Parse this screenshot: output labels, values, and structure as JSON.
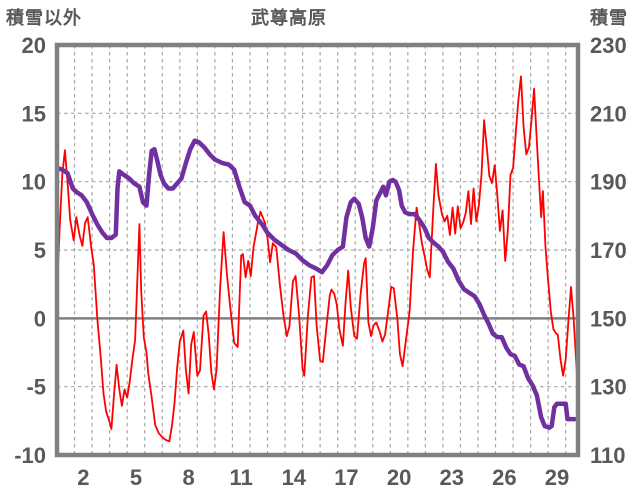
{
  "header": {
    "left_axis_label": "積雪以外",
    "title": "武尊高原",
    "right_axis_label": "積雪"
  },
  "colors": {
    "temperature_line": "#ff0000",
    "snow_line": "#7030a0",
    "axis_border": "#808080",
    "zero_line": "#808080",
    "grid": "#a6a6a6",
    "label_text": "#595959",
    "background": "#ffffff"
  },
  "chart_data": {
    "type": "line",
    "title": "武尊高原",
    "grid": "dashed, vertical line per day, horizontal line per 5 units",
    "legend_position": "none",
    "x_axis": {
      "tick_labels": [
        2,
        5,
        8,
        11,
        14,
        17,
        20,
        23,
        26,
        29
      ],
      "range_days": [
        1,
        30.7
      ],
      "gridline_step_days": 1
    },
    "left_axis": {
      "label": "積雪以外",
      "tick_labels": [
        20,
        15,
        10,
        5,
        0,
        -5,
        -10
      ],
      "range": [
        -10,
        20
      ],
      "zero_line": "solid"
    },
    "right_axis": {
      "label": "積雪",
      "tick_labels": [
        230,
        210,
        190,
        170,
        150,
        130,
        110
      ],
      "range": [
        110,
        230
      ]
    },
    "series": [
      {
        "name": "temperature",
        "axis": "left",
        "color": "#ff0000",
        "stroke_width": 1.8,
        "points": [
          [
            1.0,
            2.0
          ],
          [
            1.15,
            6.5
          ],
          [
            1.3,
            10.5
          ],
          [
            1.45,
            12.3
          ],
          [
            1.6,
            10.0
          ],
          [
            1.75,
            7.2
          ],
          [
            1.95,
            5.7
          ],
          [
            2.1,
            7.4
          ],
          [
            2.3,
            6.0
          ],
          [
            2.45,
            5.3
          ],
          [
            2.6,
            7.0
          ],
          [
            2.75,
            7.4
          ],
          [
            2.95,
            5.2
          ],
          [
            3.1,
            3.9
          ],
          [
            3.3,
            0.0
          ],
          [
            3.5,
            -3.0
          ],
          [
            3.65,
            -5.5
          ],
          [
            3.8,
            -6.8
          ],
          [
            4.0,
            -7.6
          ],
          [
            4.1,
            -8.1
          ],
          [
            4.25,
            -5.6
          ],
          [
            4.4,
            -3.4
          ],
          [
            4.55,
            -5.2
          ],
          [
            4.7,
            -6.4
          ],
          [
            4.85,
            -5.2
          ],
          [
            5.0,
            -5.8
          ],
          [
            5.15,
            -4.6
          ],
          [
            5.3,
            -3.0
          ],
          [
            5.45,
            -1.6
          ],
          [
            5.6,
            3.5
          ],
          [
            5.7,
            6.9
          ],
          [
            5.8,
            2.0
          ],
          [
            5.95,
            -1.4
          ],
          [
            6.1,
            -2.5
          ],
          [
            6.2,
            -4.0
          ],
          [
            6.4,
            -5.8
          ],
          [
            6.6,
            -7.8
          ],
          [
            6.8,
            -8.4
          ],
          [
            7.0,
            -8.7
          ],
          [
            7.2,
            -8.9
          ],
          [
            7.4,
            -9.0
          ],
          [
            7.55,
            -7.9
          ],
          [
            7.7,
            -6.2
          ],
          [
            7.85,
            -3.6
          ],
          [
            8.0,
            -1.7
          ],
          [
            8.2,
            -0.9
          ],
          [
            8.35,
            -3.8
          ],
          [
            8.5,
            -5.5
          ],
          [
            8.65,
            -1.9
          ],
          [
            8.8,
            -1.0
          ],
          [
            9.0,
            -4.2
          ],
          [
            9.15,
            -3.8
          ],
          [
            9.35,
            0.2
          ],
          [
            9.5,
            0.5
          ],
          [
            9.65,
            -1.2
          ],
          [
            9.8,
            -4.0
          ],
          [
            9.95,
            -5.2
          ],
          [
            10.1,
            -3.7
          ],
          [
            10.3,
            2.2
          ],
          [
            10.5,
            6.3
          ],
          [
            10.7,
            3.0
          ],
          [
            10.9,
            0.5
          ],
          [
            11.1,
            -1.8
          ],
          [
            11.3,
            -2.1
          ],
          [
            11.5,
            4.6
          ],
          [
            11.6,
            4.7
          ],
          [
            11.75,
            3.0
          ],
          [
            11.9,
            4.2
          ],
          [
            12.05,
            3.1
          ],
          [
            12.2,
            5.2
          ],
          [
            12.45,
            7.0
          ],
          [
            12.6,
            7.8
          ],
          [
            12.85,
            7.0
          ],
          [
            13.0,
            5.9
          ],
          [
            13.15,
            4.1
          ],
          [
            13.3,
            5.5
          ],
          [
            13.5,
            5.2
          ],
          [
            13.7,
            2.5
          ],
          [
            13.9,
            0.3
          ],
          [
            14.1,
            -1.3
          ],
          [
            14.25,
            -0.6
          ],
          [
            14.45,
            2.7
          ],
          [
            14.6,
            3.1
          ],
          [
            14.8,
            0.2
          ],
          [
            15.0,
            -3.7
          ],
          [
            15.1,
            -4.2
          ],
          [
            15.3,
            0.2
          ],
          [
            15.5,
            3.0
          ],
          [
            15.65,
            3.1
          ],
          [
            15.8,
            -0.5
          ],
          [
            16.0,
            -3.1
          ],
          [
            16.15,
            -3.2
          ],
          [
            16.35,
            -0.7
          ],
          [
            16.55,
            1.7
          ],
          [
            16.65,
            2.1
          ],
          [
            16.8,
            1.8
          ],
          [
            16.95,
            1.0
          ],
          [
            17.1,
            -0.8
          ],
          [
            17.3,
            -2.0
          ],
          [
            17.45,
            1.2
          ],
          [
            17.6,
            3.5
          ],
          [
            17.75,
            0.8
          ],
          [
            17.95,
            -1.3
          ],
          [
            18.1,
            -1.5
          ],
          [
            18.3,
            1.7
          ],
          [
            18.5,
            4.0
          ],
          [
            18.6,
            4.4
          ],
          [
            18.75,
            -0.3
          ],
          [
            18.9,
            -1.3
          ],
          [
            19.05,
            -0.5
          ],
          [
            19.2,
            -0.3
          ],
          [
            19.4,
            -1.0
          ],
          [
            19.55,
            -1.7
          ],
          [
            19.7,
            -1.2
          ],
          [
            19.9,
            0.7
          ],
          [
            20.05,
            2.3
          ],
          [
            20.2,
            2.2
          ],
          [
            20.4,
            0.0
          ],
          [
            20.55,
            -2.6
          ],
          [
            20.7,
            -3.5
          ],
          [
            20.9,
            -1.5
          ],
          [
            21.1,
            0.5
          ],
          [
            21.3,
            5.0
          ],
          [
            21.5,
            8.1
          ],
          [
            21.65,
            6.9
          ],
          [
            21.8,
            5.5
          ],
          [
            21.95,
            4.6
          ],
          [
            22.1,
            3.6
          ],
          [
            22.25,
            3.0
          ],
          [
            22.45,
            8.0
          ],
          [
            22.6,
            11.3
          ],
          [
            22.75,
            9.0
          ],
          [
            22.95,
            7.6
          ],
          [
            23.1,
            7.1
          ],
          [
            23.25,
            7.5
          ],
          [
            23.4,
            6.1
          ],
          [
            23.55,
            8.1
          ],
          [
            23.7,
            6.2
          ],
          [
            23.85,
            8.2
          ],
          [
            24.0,
            6.6
          ],
          [
            24.15,
            7.0
          ],
          [
            24.3,
            7.7
          ],
          [
            24.45,
            9.3
          ],
          [
            24.6,
            6.9
          ],
          [
            24.75,
            9.5
          ],
          [
            24.9,
            7.1
          ],
          [
            25.05,
            8.3
          ],
          [
            25.2,
            10.5
          ],
          [
            25.35,
            14.5
          ],
          [
            25.5,
            12.5
          ],
          [
            25.65,
            10.4
          ],
          [
            25.8,
            9.9
          ],
          [
            25.95,
            11.2
          ],
          [
            26.1,
            9.0
          ],
          [
            26.25,
            6.4
          ],
          [
            26.4,
            7.9
          ],
          [
            26.55,
            4.2
          ],
          [
            26.7,
            6.4
          ],
          [
            26.85,
            10.5
          ],
          [
            27.0,
            11.0
          ],
          [
            27.15,
            13.5
          ],
          [
            27.3,
            16.0
          ],
          [
            27.45,
            17.7
          ],
          [
            27.6,
            14.0
          ],
          [
            27.75,
            12.0
          ],
          [
            27.9,
            12.5
          ],
          [
            28.05,
            14.5
          ],
          [
            28.2,
            16.8
          ],
          [
            28.35,
            13.0
          ],
          [
            28.5,
            9.6
          ],
          [
            28.6,
            7.4
          ],
          [
            28.7,
            9.3
          ],
          [
            28.85,
            5.2
          ],
          [
            29.0,
            2.7
          ],
          [
            29.15,
            0.5
          ],
          [
            29.3,
            -0.8
          ],
          [
            29.45,
            -1.1
          ],
          [
            29.55,
            -1.2
          ],
          [
            29.7,
            -3.0
          ],
          [
            29.85,
            -4.2
          ],
          [
            30.0,
            -3.0
          ],
          [
            30.15,
            -0.2
          ],
          [
            30.3,
            2.3
          ],
          [
            30.45,
            0.0
          ],
          [
            30.6,
            -3.2
          ],
          [
            30.7,
            -5.0
          ]
        ]
      },
      {
        "name": "snow_depth",
        "axis": "right",
        "color": "#7030a0",
        "stroke_width": 4.5,
        "points": [
          [
            1.0,
            194
          ],
          [
            1.3,
            193.5
          ],
          [
            1.6,
            192.5
          ],
          [
            1.9,
            188
          ],
          [
            2.1,
            187
          ],
          [
            2.4,
            186
          ],
          [
            2.7,
            184
          ],
          [
            3.0,
            180.5
          ],
          [
            3.3,
            177.5
          ],
          [
            3.6,
            175
          ],
          [
            3.85,
            173.5
          ],
          [
            4.1,
            173.5
          ],
          [
            4.35,
            174.5
          ],
          [
            4.45,
            188
          ],
          [
            4.55,
            193
          ],
          [
            4.8,
            192
          ],
          [
            5.1,
            191
          ],
          [
            5.4,
            189.5
          ],
          [
            5.7,
            188.5
          ],
          [
            5.9,
            184
          ],
          [
            6.1,
            183
          ],
          [
            6.25,
            192
          ],
          [
            6.4,
            199
          ],
          [
            6.55,
            199.5
          ],
          [
            6.7,
            196.5
          ],
          [
            6.9,
            192
          ],
          [
            7.1,
            189.5
          ],
          [
            7.35,
            188
          ],
          [
            7.6,
            188
          ],
          [
            7.85,
            189.5
          ],
          [
            8.1,
            191
          ],
          [
            8.35,
            195.5
          ],
          [
            8.6,
            199.5
          ],
          [
            8.85,
            202
          ],
          [
            9.1,
            201.5
          ],
          [
            9.4,
            200
          ],
          [
            9.7,
            198
          ],
          [
            10.0,
            196.5
          ],
          [
            10.4,
            195.5
          ],
          [
            10.8,
            195
          ],
          [
            11.1,
            193.5
          ],
          [
            11.4,
            188.5
          ],
          [
            11.7,
            184
          ],
          [
            12.0,
            183
          ],
          [
            12.3,
            180
          ],
          [
            12.7,
            177.5
          ],
          [
            13.0,
            175
          ],
          [
            13.4,
            173
          ],
          [
            13.8,
            171.5
          ],
          [
            14.2,
            170
          ],
          [
            14.6,
            169
          ],
          [
            15.0,
            167
          ],
          [
            15.4,
            165.5
          ],
          [
            15.8,
            164.5
          ],
          [
            16.1,
            163.5
          ],
          [
            16.4,
            165.5
          ],
          [
            16.7,
            168.5
          ],
          [
            17.0,
            170
          ],
          [
            17.3,
            171
          ],
          [
            17.5,
            179.5
          ],
          [
            17.75,
            184
          ],
          [
            17.95,
            185
          ],
          [
            18.2,
            183.5
          ],
          [
            18.4,
            179.5
          ],
          [
            18.6,
            173.5
          ],
          [
            18.8,
            171
          ],
          [
            19.0,
            176.5
          ],
          [
            19.2,
            184.5
          ],
          [
            19.45,
            187
          ],
          [
            19.6,
            188.5
          ],
          [
            19.75,
            186
          ],
          [
            19.95,
            190
          ],
          [
            20.15,
            190.5
          ],
          [
            20.3,
            190
          ],
          [
            20.5,
            187.5
          ],
          [
            20.65,
            183
          ],
          [
            20.85,
            181
          ],
          [
            21.1,
            180.5
          ],
          [
            21.4,
            180.5
          ],
          [
            21.7,
            178.5
          ],
          [
            21.95,
            176.5
          ],
          [
            22.2,
            173.5
          ],
          [
            22.5,
            172
          ],
          [
            22.75,
            171
          ],
          [
            23.0,
            169.5
          ],
          [
            23.3,
            166.5
          ],
          [
            23.6,
            164.5
          ],
          [
            23.9,
            161
          ],
          [
            24.2,
            158.5
          ],
          [
            24.5,
            157.5
          ],
          [
            24.8,
            156.5
          ],
          [
            25.1,
            154
          ],
          [
            25.35,
            151
          ],
          [
            25.6,
            148.5
          ],
          [
            25.85,
            145.5
          ],
          [
            26.1,
            144.5
          ],
          [
            26.35,
            144.5
          ],
          [
            26.6,
            141.5
          ],
          [
            26.85,
            139.5
          ],
          [
            27.1,
            139
          ],
          [
            27.35,
            136.5
          ],
          [
            27.6,
            136
          ],
          [
            27.85,
            132.5
          ],
          [
            28.1,
            130.5
          ],
          [
            28.35,
            127.5
          ],
          [
            28.6,
            121
          ],
          [
            28.8,
            118.5
          ],
          [
            29.05,
            118
          ],
          [
            29.2,
            118.5
          ],
          [
            29.35,
            124
          ],
          [
            29.5,
            125
          ],
          [
            29.8,
            125
          ],
          [
            30.0,
            125
          ],
          [
            30.1,
            120.5
          ],
          [
            30.3,
            120.5
          ],
          [
            30.5,
            120.5
          ]
        ]
      }
    ]
  }
}
